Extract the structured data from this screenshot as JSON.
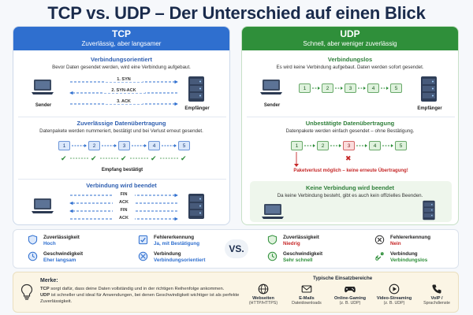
{
  "title": "TCP vs. UDP – Der Unterschied auf einen Blick",
  "tcp": {
    "header": "TCP",
    "subheader": "Zuverlässig, aber langsamer",
    "handshake": {
      "title": "Verbindungsorientiert",
      "desc": "Bevor Daten gesendet werden, wird eine Verbindung aufgebaut.",
      "steps": [
        "1. SYN",
        "2. SYN-ACK",
        "3. ACK"
      ],
      "sender": "Sender",
      "receiver": "Empfänger"
    },
    "transfer": {
      "title": "Zuverlässige Datenübertragung",
      "desc": "Datenpakete werden nummeriert, bestätigt und bei Verlust erneut gesendet.",
      "packets": [
        "1",
        "2",
        "3",
        "4",
        "5"
      ],
      "confirm": "Empfang bestätigt"
    },
    "teardown": {
      "title": "Verbindung wird beendet",
      "steps": [
        "FIN",
        "ACK",
        "FIN",
        "ACK"
      ]
    }
  },
  "udp": {
    "header": "UDP",
    "subheader": "Schnell, aber weniger zuverlässig",
    "connection": {
      "title": "Verbindungslos",
      "desc": "Es wird keine Verbindung aufgebaut. Daten werden sofort gesendet.",
      "packets": [
        "1",
        "2",
        "3",
        "4",
        "5"
      ],
      "sender": "Sender",
      "receiver": "Empfänger"
    },
    "transfer": {
      "title": "Unbestätigte Datenübertragung",
      "desc": "Datenpakete werden einfach gesendet – ohne Bestätigung.",
      "packets": [
        "1",
        "2",
        "3",
        "4",
        "5"
      ],
      "lost_index": 2,
      "loss_note": "Paketverlust möglich – keine erneute Übertragung!"
    },
    "teardown": {
      "title": "Keine Verbindung wird beendet",
      "desc": "Da keine Verbindung besteht, gibt es auch kein offizielles Beenden."
    }
  },
  "compare": {
    "vs": "VS.",
    "tcp": [
      {
        "label": "Zuverlässigkeit",
        "value": "Hoch",
        "icon": "shield-icon"
      },
      {
        "label": "Fehlererkennung",
        "value": "Ja, mit Bestätigung",
        "icon": "error-check-icon"
      },
      {
        "label": "Geschwindigkeit",
        "value": "Eher langsam",
        "icon": "clock-icon"
      },
      {
        "label": "Verbindung",
        "value": "Verbindungsorientiert",
        "icon": "connection-icon"
      }
    ],
    "udp": [
      {
        "label": "Zuverlässigkeit",
        "value": "Niedrig",
        "icon": "shield-icon"
      },
      {
        "label": "Fehlererkennung",
        "value": "Nein",
        "icon": "x-circle-icon"
      },
      {
        "label": "Geschwindigkeit",
        "value": "Sehr schnell",
        "icon": "clock-icon"
      },
      {
        "label": "Verbindung",
        "value": "Verbindungslos",
        "icon": "broken-link-icon"
      }
    ]
  },
  "notes": {
    "title": "Merke:",
    "line1_bold": "TCP",
    "line1": " sorgt dafür, dass deine Daten vollständig und in der richtigen Reihenfolge ankommen.",
    "line2_bold": "UDP",
    "line2": " ist schneller und ideal für Anwendungen, bei denen Geschwindigkeit wichtiger ist als perfekte Zuverlässigkeit."
  },
  "use_cases": {
    "title": "Typische Einsatzbereiche",
    "items": [
      {
        "label": "Webseiten",
        "sub": "(HTTP/HTTPS)",
        "icon": "globe-icon"
      },
      {
        "label": "E-Mails",
        "sub": "Dateidownloads",
        "icon": "mail-icon"
      },
      {
        "label": "Online-Gaming",
        "sub": "(z. B. UDP)",
        "icon": "gamepad-icon"
      },
      {
        "label": "Video-Streaming",
        "sub": "(z. B. UDP)",
        "icon": "play-icon"
      },
      {
        "label": "VoIP /",
        "sub": "Sprachdienste",
        "icon": "phone-icon"
      }
    ]
  },
  "colors": {
    "tcp_accent": "#2f6fcf",
    "udp_accent": "#2f8f3a",
    "loss_red": "#c62828",
    "title": "#1a2b4c"
  }
}
